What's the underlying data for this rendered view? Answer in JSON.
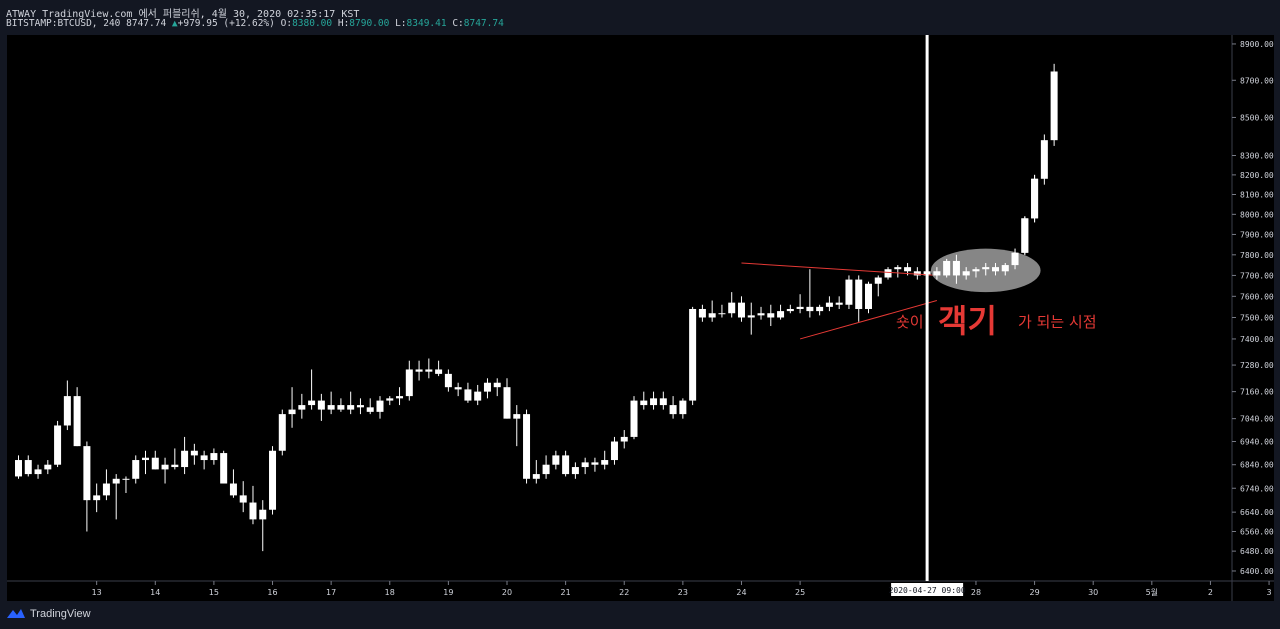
{
  "header": {
    "publish_line": "ATWAY TradingView.com 에서 퍼블리쉬, 4월 30, 2020 02:35:17 KST",
    "symbol": "BITSTAMP:BTCUSD, 240",
    "last_price": "8747.74",
    "change": "+979.95 (+12.62%)",
    "open_label": "O:",
    "open": "8380.00",
    "high_label": "H:",
    "high": "8790.00",
    "low_label": "L:",
    "low": "8349.41",
    "close_label": "C:",
    "close": "8747.74"
  },
  "annotation": {
    "part1": "숏이",
    "part2": "객기",
    "part3": "가 되는 시점"
  },
  "crosshair_label": "2020-04-27  09:00",
  "footer": {
    "brand": "TradingView"
  },
  "colors": {
    "background": "#000000",
    "panel": "#131722",
    "candle": "#ffffff",
    "accent": "#e53935",
    "up": "#26a69a"
  },
  "chart_data": {
    "type": "candlestick",
    "symbol": "BITSTAMP:BTCUSD",
    "timeframe": "240",
    "y_scale": "log",
    "ylim": [
      6360,
      8950
    ],
    "y_ticks": [
      6400,
      6480,
      6560,
      6640,
      6740,
      6840,
      6940,
      7040,
      7160,
      7280,
      7400,
      7500,
      7600,
      7700,
      7800,
      7900,
      8000,
      8100,
      8200,
      8300,
      8500,
      8700,
      8900
    ],
    "x_ticks": [
      {
        "label": "13",
        "i": 8
      },
      {
        "label": "14",
        "i": 14
      },
      {
        "label": "15",
        "i": 20
      },
      {
        "label": "16",
        "i": 26
      },
      {
        "label": "17",
        "i": 32
      },
      {
        "label": "18",
        "i": 38
      },
      {
        "label": "19",
        "i": 44
      },
      {
        "label": "20",
        "i": 50
      },
      {
        "label": "21",
        "i": 56
      },
      {
        "label": "22",
        "i": 62
      },
      {
        "label": "23",
        "i": 68
      },
      {
        "label": "24",
        "i": 74
      },
      {
        "label": "25",
        "i": 80
      },
      {
        "label": "28",
        "i": 98
      },
      {
        "label": "29",
        "i": 104
      },
      {
        "label": "30",
        "i": 110
      },
      {
        "label": "5월",
        "i": 116
      },
      {
        "label": "2",
        "i": 122
      },
      {
        "label": "3",
        "i": 128
      }
    ],
    "crosshair_index": 93,
    "candles": [
      [
        6790,
        6880,
        6780,
        6860
      ],
      [
        6860,
        6880,
        6790,
        6800
      ],
      [
        6800,
        6840,
        6780,
        6820
      ],
      [
        6820,
        6860,
        6800,
        6840
      ],
      [
        6840,
        7030,
        6830,
        7010
      ],
      [
        7010,
        7210,
        6990,
        7140
      ],
      [
        7140,
        7180,
        6920,
        6920
      ],
      [
        6920,
        6940,
        6560,
        6690
      ],
      [
        6690,
        6760,
        6640,
        6710
      ],
      [
        6710,
        6820,
        6690,
        6760
      ],
      [
        6760,
        6800,
        6610,
        6780
      ],
      [
        6780,
        6790,
        6720,
        6780
      ],
      [
        6780,
        6880,
        6760,
        6860
      ],
      [
        6860,
        6900,
        6800,
        6870
      ],
      [
        6870,
        6900,
        6820,
        6820
      ],
      [
        6820,
        6870,
        6760,
        6840
      ],
      [
        6840,
        6910,
        6820,
        6830
      ],
      [
        6830,
        6960,
        6800,
        6900
      ],
      [
        6900,
        6930,
        6840,
        6880
      ],
      [
        6880,
        6900,
        6820,
        6860
      ],
      [
        6860,
        6910,
        6840,
        6890
      ],
      [
        6890,
        6900,
        6760,
        6760
      ],
      [
        6760,
        6820,
        6700,
        6710
      ],
      [
        6710,
        6770,
        6640,
        6680
      ],
      [
        6680,
        6750,
        6590,
        6610
      ],
      [
        6610,
        6690,
        6480,
        6650
      ],
      [
        6650,
        6920,
        6630,
        6900
      ],
      [
        6900,
        7080,
        6880,
        7060
      ],
      [
        7060,
        7180,
        7000,
        7080
      ],
      [
        7080,
        7150,
        7040,
        7100
      ],
      [
        7100,
        7260,
        7080,
        7120
      ],
      [
        7120,
        7150,
        7030,
        7080
      ],
      [
        7080,
        7160,
        7060,
        7100
      ],
      [
        7100,
        7130,
        7070,
        7080
      ],
      [
        7080,
        7160,
        7060,
        7100
      ],
      [
        7100,
        7130,
        7060,
        7090
      ],
      [
        7090,
        7130,
        7060,
        7070
      ],
      [
        7070,
        7140,
        7040,
        7120
      ],
      [
        7120,
        7140,
        7100,
        7130
      ],
      [
        7130,
        7180,
        7100,
        7140
      ],
      [
        7140,
        7300,
        7120,
        7260
      ],
      [
        7260,
        7300,
        7210,
        7250
      ],
      [
        7250,
        7310,
        7220,
        7260
      ],
      [
        7260,
        7300,
        7230,
        7240
      ],
      [
        7240,
        7260,
        7160,
        7180
      ],
      [
        7180,
        7200,
        7140,
        7170
      ],
      [
        7170,
        7200,
        7110,
        7120
      ],
      [
        7120,
        7190,
        7100,
        7160
      ],
      [
        7160,
        7220,
        7130,
        7200
      ],
      [
        7200,
        7220,
        7140,
        7180
      ],
      [
        7180,
        7220,
        7040,
        7040
      ],
      [
        7040,
        7100,
        6920,
        7060
      ],
      [
        7060,
        7080,
        6760,
        6780
      ],
      [
        6780,
        6860,
        6760,
        6800
      ],
      [
        6800,
        6880,
        6780,
        6840
      ],
      [
        6840,
        6900,
        6820,
        6880
      ],
      [
        6880,
        6900,
        6790,
        6800
      ],
      [
        6800,
        6850,
        6780,
        6830
      ],
      [
        6830,
        6870,
        6800,
        6850
      ],
      [
        6850,
        6870,
        6810,
        6840
      ],
      [
        6840,
        6900,
        6820,
        6860
      ],
      [
        6860,
        6960,
        6840,
        6940
      ],
      [
        6940,
        6990,
        6910,
        6960
      ],
      [
        6960,
        7140,
        6950,
        7120
      ],
      [
        7120,
        7160,
        7080,
        7100
      ],
      [
        7100,
        7160,
        7080,
        7130
      ],
      [
        7130,
        7160,
        7080,
        7100
      ],
      [
        7100,
        7140,
        7040,
        7060
      ],
      [
        7060,
        7130,
        7040,
        7120
      ],
      [
        7120,
        7550,
        7100,
        7540
      ],
      [
        7540,
        7560,
        7480,
        7500
      ],
      [
        7500,
        7580,
        7480,
        7520
      ],
      [
        7520,
        7560,
        7500,
        7520
      ],
      [
        7520,
        7620,
        7500,
        7570
      ],
      [
        7570,
        7600,
        7480,
        7500
      ],
      [
        7500,
        7570,
        7420,
        7510
      ],
      [
        7510,
        7550,
        7490,
        7520
      ],
      [
        7520,
        7560,
        7460,
        7500
      ],
      [
        7500,
        7560,
        7490,
        7530
      ],
      [
        7530,
        7560,
        7520,
        7540
      ],
      [
        7540,
        7610,
        7520,
        7550
      ],
      [
        7550,
        7730,
        7500,
        7530
      ],
      [
        7530,
        7560,
        7510,
        7550
      ],
      [
        7550,
        7600,
        7530,
        7570
      ],
      [
        7570,
        7600,
        7540,
        7560
      ],
      [
        7560,
        7700,
        7540,
        7680
      ],
      [
        7680,
        7700,
        7480,
        7540
      ],
      [
        7540,
        7670,
        7520,
        7660
      ],
      [
        7660,
        7700,
        7600,
        7690
      ],
      [
        7690,
        7740,
        7680,
        7730
      ],
      [
        7730,
        7750,
        7690,
        7740
      ],
      [
        7740,
        7760,
        7700,
        7720
      ],
      [
        7720,
        7740,
        7680,
        7700
      ],
      [
        7700,
        7740,
        7690,
        7720
      ],
      [
        7720,
        7740,
        7680,
        7700
      ],
      [
        7700,
        7780,
        7690,
        7770
      ],
      [
        7770,
        7800,
        7660,
        7700
      ],
      [
        7700,
        7740,
        7680,
        7720
      ],
      [
        7720,
        7740,
        7690,
        7730
      ],
      [
        7730,
        7760,
        7700,
        7740
      ],
      [
        7740,
        7760,
        7700,
        7720
      ],
      [
        7720,
        7760,
        7700,
        7750
      ],
      [
        7750,
        7830,
        7730,
        7810
      ],
      [
        7810,
        7990,
        7800,
        7980
      ],
      [
        7980,
        8200,
        7960,
        8180
      ],
      [
        8180,
        8410,
        8150,
        8380
      ],
      [
        8380,
        8790,
        8350,
        8748
      ]
    ],
    "drawings": [
      {
        "type": "trendline",
        "color": "#e53935",
        "from": {
          "i": 74,
          "price": 7760
        },
        "to": {
          "i": 94,
          "price": 7700
        }
      },
      {
        "type": "trendline",
        "color": "#e53935",
        "from": {
          "i": 80,
          "price": 7400
        },
        "to": {
          "i": 94,
          "price": 7580
        }
      },
      {
        "type": "vertical-line",
        "color": "#ffffff",
        "i": 93
      },
      {
        "type": "ellipse",
        "color": "#9e9e9e",
        "from_i": 94,
        "to_i": 104,
        "price_top": 7830,
        "price_bottom": 7620
      }
    ]
  }
}
